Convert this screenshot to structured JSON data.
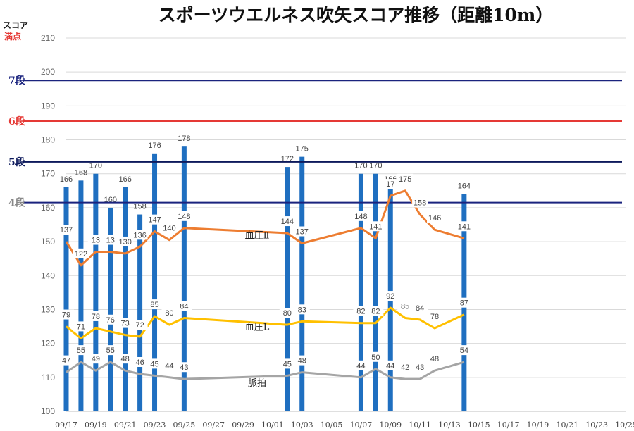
{
  "chart_data": {
    "type": "bar",
    "title": "スポーツウエルネス吹矢スコア推移（距離10m）",
    "corner_label_1": "スコア",
    "corner_label_2": "満点",
    "ylim": [
      100,
      210
    ],
    "yticks": [
      100,
      110,
      120,
      130,
      140,
      150,
      160,
      170,
      180,
      190,
      200,
      210
    ],
    "xlim": [
      "09/17",
      "10/25"
    ],
    "xtick_labels": [
      "09/17",
      "09/19",
      "09/21",
      "09/23",
      "09/25",
      "09/27",
      "09/29",
      "10/01",
      "10/03",
      "10/05",
      "10/07",
      "10/09",
      "10/11",
      "10/13",
      "10/15",
      "10/17",
      "10/19",
      "10/21",
      "10/23",
      "10/25"
    ],
    "grid": true,
    "reference_lines": [
      {
        "label": "7段",
        "value": 197.5,
        "color": "#1a237e"
      },
      {
        "label": "6段",
        "value": 185.5,
        "color": "#e53935"
      },
      {
        "label": "5段",
        "value": 173.5,
        "color": "#0d1a5c"
      },
      {
        "label": "4段",
        "value": 161.5,
        "color": "#1a237e",
        "label_color": "#888888"
      }
    ],
    "score_series": {
      "name": "スコア",
      "color": "#1f6fc0",
      "points": [
        {
          "date": "09/17",
          "value": 166
        },
        {
          "date": "09/18",
          "value": 168
        },
        {
          "date": "09/19",
          "value": 170
        },
        {
          "date": "09/20",
          "value": 160
        },
        {
          "date": "09/21",
          "value": 166
        },
        {
          "date": "09/22",
          "value": 158
        },
        {
          "date": "09/23",
          "value": 176
        },
        {
          "date": "09/25",
          "value": 178
        },
        {
          "date": "10/02",
          "value": 172
        },
        {
          "date": "10/03",
          "value": 175
        },
        {
          "date": "10/07",
          "value": 170
        },
        {
          "date": "10/08",
          "value": 170
        },
        {
          "date": "10/09",
          "value": 166
        },
        {
          "date": "10/14",
          "value": 164
        }
      ]
    },
    "line_series": [
      {
        "name": "血圧Ⅱ",
        "color": "#ed7d31",
        "points": [
          {
            "date": "09/17",
            "value": 150,
            "label": "137"
          },
          {
            "date": "09/18",
            "value": 143,
            "label": "122"
          },
          {
            "date": "09/19",
            "value": 147,
            "label": "13"
          },
          {
            "date": "09/20",
            "value": 147,
            "label": "13"
          },
          {
            "date": "09/21",
            "value": 146.5,
            "label": "130"
          },
          {
            "date": "09/22",
            "value": 148.5,
            "label": "136"
          },
          {
            "date": "09/23",
            "value": 153,
            "label": "147"
          },
          {
            "date": "09/24",
            "value": 150.5,
            "label": "140"
          },
          {
            "date": "09/25",
            "value": 154,
            "label": "148"
          },
          {
            "date": "10/02",
            "value": 152.5,
            "label": "144"
          },
          {
            "date": "10/03",
            "value": 149.5,
            "label": "137"
          },
          {
            "date": "10/07",
            "value": 154,
            "label": "148"
          },
          {
            "date": "10/08",
            "value": 151,
            "label": "141"
          },
          {
            "date": "10/09",
            "value": 163.5,
            "label": "17"
          },
          {
            "date": "10/10",
            "value": 165,
            "label": "175"
          },
          {
            "date": "10/11",
            "value": 158,
            "label": "158"
          },
          {
            "date": "10/12",
            "value": 153.5,
            "label": "146"
          },
          {
            "date": "10/14",
            "value": 151,
            "label": "141"
          }
        ]
      },
      {
        "name": "血圧L",
        "color": "#ffc000",
        "points": [
          {
            "date": "09/17",
            "value": 125,
            "label": "79"
          },
          {
            "date": "09/18",
            "value": 121.5,
            "label": "71"
          },
          {
            "date": "09/19",
            "value": 124.5,
            "label": "78"
          },
          {
            "date": "09/20",
            "value": 123.5,
            "label": "76"
          },
          {
            "date": "09/21",
            "value": 122.5,
            "label": "73"
          },
          {
            "date": "09/22",
            "value": 122,
            "label": "72"
          },
          {
            "date": "09/23",
            "value": 128,
            "label": "85"
          },
          {
            "date": "09/24",
            "value": 125.5,
            "label": "80"
          },
          {
            "date": "09/25",
            "value": 127.5,
            "label": "84"
          },
          {
            "date": "10/02",
            "value": 125.5,
            "label": "80"
          },
          {
            "date": "10/03",
            "value": 126.5,
            "label": "83"
          },
          {
            "date": "10/07",
            "value": 126,
            "label": "82"
          },
          {
            "date": "10/08",
            "value": 126,
            "label": "82"
          },
          {
            "date": "10/09",
            "value": 130.5,
            "label": "92"
          },
          {
            "date": "10/10",
            "value": 127.5,
            "label": "85"
          },
          {
            "date": "10/11",
            "value": 127,
            "label": "84"
          },
          {
            "date": "10/12",
            "value": 124.5,
            "label": "78"
          },
          {
            "date": "10/14",
            "value": 128.5,
            "label": "87"
          }
        ]
      },
      {
        "name": "脈拍",
        "color": "#a5a5a5",
        "points": [
          {
            "date": "09/17",
            "value": 111.5,
            "label": "47"
          },
          {
            "date": "09/18",
            "value": 114.5,
            "label": "55"
          },
          {
            "date": "09/19",
            "value": 112,
            "label": "49"
          },
          {
            "date": "09/20",
            "value": 114.5,
            "label": "55"
          },
          {
            "date": "09/21",
            "value": 112,
            "label": "48"
          },
          {
            "date": "09/22",
            "value": 111,
            "label": "46"
          },
          {
            "date": "09/23",
            "value": 110.5,
            "label": "45"
          },
          {
            "date": "09/25",
            "value": 109.5,
            "label": "43"
          },
          {
            "date": "09/24",
            "value": 110,
            "label": "44"
          },
          {
            "date": "10/02",
            "value": 110.5,
            "label": "45"
          },
          {
            "date": "10/03",
            "value": 111.5,
            "label": "48"
          },
          {
            "date": "10/07",
            "value": 110,
            "label": "44"
          },
          {
            "date": "10/08",
            "value": 112.5,
            "label": "50"
          },
          {
            "date": "10/09",
            "value": 110,
            "label": "44"
          },
          {
            "date": "10/10",
            "value": 109.5,
            "label": "42"
          },
          {
            "date": "10/11",
            "value": 109.5,
            "label": "43"
          },
          {
            "date": "10/12",
            "value": 112,
            "label": "48"
          },
          {
            "date": "10/14",
            "value": 114.5,
            "label": "54"
          }
        ]
      }
    ]
  }
}
